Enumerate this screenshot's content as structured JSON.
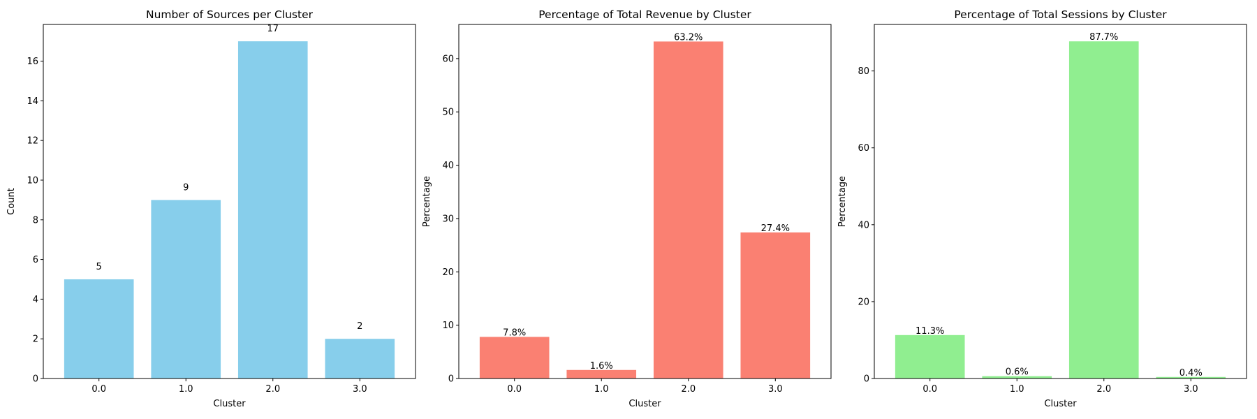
{
  "chart_data": [
    {
      "type": "bar",
      "title": "Number of Sources per Cluster",
      "xlabel": "Cluster",
      "ylabel": "Count",
      "categories": [
        "0.0",
        "1.0",
        "2.0",
        "3.0"
      ],
      "values": [
        5,
        9,
        17,
        2
      ],
      "value_labels": [
        "5",
        "9",
        "17",
        "2"
      ],
      "ylim": [
        0,
        17.85
      ],
      "yticks": [
        0,
        2,
        4,
        6,
        8,
        10,
        12,
        14,
        16
      ],
      "color": "#87ceeb",
      "label_position": "offset-above",
      "grid": false,
      "legend": "none"
    },
    {
      "type": "bar",
      "title": "Percentage of Total Revenue by Cluster",
      "xlabel": "Cluster",
      "ylabel": "Percentage",
      "categories": [
        "0.0",
        "1.0",
        "2.0",
        "3.0"
      ],
      "values": [
        7.8,
        1.6,
        63.2,
        27.4
      ],
      "value_labels": [
        "7.8%",
        "1.6%",
        "63.2%",
        "27.4%"
      ],
      "ylim": [
        0,
        66.4
      ],
      "yticks": [
        0,
        10,
        20,
        30,
        40,
        50,
        60
      ],
      "color": "#fa8072",
      "label_position": "on-top",
      "grid": false,
      "legend": "none"
    },
    {
      "type": "bar",
      "title": "Percentage of Total Sessions by Cluster",
      "xlabel": "Cluster",
      "ylabel": "Percentage",
      "categories": [
        "0.0",
        "1.0",
        "2.0",
        "3.0"
      ],
      "values": [
        11.3,
        0.6,
        87.7,
        0.4
      ],
      "value_labels": [
        "11.3%",
        "0.6%",
        "87.7%",
        "0.4%"
      ],
      "ylim": [
        0,
        92.1
      ],
      "yticks": [
        0,
        20,
        40,
        60,
        80
      ],
      "color": "#90ee90",
      "label_position": "on-top",
      "grid": false,
      "legend": "none"
    }
  ]
}
